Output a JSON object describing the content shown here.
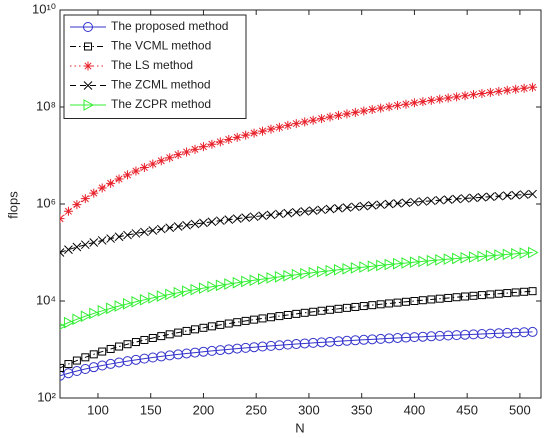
{
  "chart_data": {
    "type": "line",
    "xlabel": "N",
    "ylabel": "flops",
    "log_y": true,
    "legend": "upper left",
    "xlim": [
      64,
      520
    ],
    "xticks": [
      100,
      150,
      200,
      250,
      300,
      350,
      400,
      450,
      500
    ],
    "ylim": [
      100,
      10000000000
    ],
    "yticks": [
      {
        "value": 100,
        "label": "10²"
      },
      {
        "value": 10000,
        "label": "10⁴"
      },
      {
        "value": 1000000,
        "label": "10⁶"
      },
      {
        "value": 100000000,
        "label": "10⁸"
      },
      {
        "value": 10000000000,
        "label": "10¹⁰"
      }
    ],
    "x": [
      64,
      72,
      80,
      88,
      96,
      104,
      112,
      120,
      128,
      136,
      144,
      152,
      160,
      168,
      176,
      184,
      192,
      200,
      208,
      216,
      224,
      232,
      240,
      248,
      256,
      264,
      272,
      280,
      288,
      296,
      304,
      312,
      320,
      328,
      336,
      344,
      352,
      360,
      368,
      376,
      384,
      392,
      400,
      408,
      416,
      424,
      432,
      440,
      448,
      456,
      464,
      472,
      480,
      488,
      496,
      504,
      512
    ],
    "series": [
      {
        "name": "The proposed method",
        "color": "#3333cc",
        "marker": "circle",
        "dash": "solid",
        "values": [
          288,
          324,
          360,
          396,
          432,
          468,
          504,
          540,
          576,
          612,
          648,
          684,
          720,
          756,
          792,
          828,
          864,
          900,
          936,
          972,
          1008,
          1044,
          1080,
          1116,
          1152,
          1188,
          1224,
          1260,
          1296,
          1332,
          1368,
          1404,
          1440,
          1476,
          1512,
          1548,
          1584,
          1620,
          1656,
          1692,
          1728,
          1764,
          1800,
          1836,
          1872,
          1908,
          1944,
          1980,
          2016,
          2052,
          2088,
          2124,
          2160,
          2196,
          2232,
          2268,
          2304
        ]
      },
      {
        "name": "The VCML method",
        "color": "#000000",
        "marker": "square",
        "dash": "dashdot",
        "values": [
          417,
          501,
          592,
          690,
          795,
          907,
          1026,
          1152,
          1285,
          1425,
          1572,
          1727,
          1888,
          2056,
          2232,
          2414,
          2604,
          2800,
          3004,
          3214,
          3432,
          3656,
          3888,
          4127,
          4372,
          4625,
          4885,
          5152,
          5426,
          5707,
          5995,
          6290,
          6592,
          6901,
          7217,
          7540,
          7871,
          8208,
          8552,
          8904,
          9262,
          9628,
          10000,
          10380,
          10766,
          11160,
          11560,
          11968,
          12383,
          12804,
          13233,
          13669,
          14112,
          14562,
          15019,
          15483,
          15954
        ]
      },
      {
        "name": "The LS method",
        "color": "#e8202a",
        "marker": "star",
        "dash": "dotted",
        "values": [
          498000,
          709000,
          973000,
          1290000,
          1680000,
          2140000,
          2670000,
          3280000,
          3980000,
          4780000,
          5670000,
          6670000,
          7780000,
          9010000,
          10400000,
          11800000,
          13400000,
          15200000,
          17100000,
          19100000,
          21400000,
          23700000,
          26300000,
          29000000,
          31900000,
          35000000,
          38200000,
          41700000,
          45400000,
          49300000,
          53400000,
          57700000,
          62300000,
          67000000,
          72100000,
          77300000,
          82900000,
          88600000,
          94700000,
          101000000,
          108000000,
          114000000,
          122000000,
          129000000,
          137000000,
          145000000,
          153000000,
          162000000,
          171000000,
          180000000,
          190000000,
          200000000,
          210000000,
          221000000,
          232000000,
          243000000,
          255000000
        ]
      },
      {
        "name": "The ZCML method",
        "color": "#000000",
        "marker": "x",
        "dash": "dashed",
        "values": [
          100096,
          114624,
          129600,
          145024,
          160896,
          177216,
          193984,
          211200,
          228864,
          246976,
          265536,
          284544,
          304000,
          323904,
          344256,
          365056,
          386304,
          408000,
          430144,
          452736,
          475776,
          499264,
          523200,
          547584,
          572416,
          597696,
          623424,
          649600,
          676224,
          703296,
          730816,
          758784,
          787200,
          816064,
          845376,
          875136,
          905344,
          936000,
          967104,
          998656,
          1030656,
          1063104,
          1096000,
          1129344,
          1163136,
          1197376,
          1232064,
          1267200,
          1302784,
          1338816,
          1375296,
          1412224,
          1449600,
          1487424,
          1525696,
          1564416,
          1603584
        ]
      },
      {
        "name": "The ZCPR method",
        "color": "#33ee33",
        "marker": "triangle-right",
        "dash": "solid",
        "values": [
          3016,
          3583,
          4192,
          4844,
          5537,
          6273,
          7052,
          7872,
          8735,
          9640,
          10587,
          11576,
          12608,
          13682,
          14798,
          15956,
          17157,
          18400,
          19685,
          21012,
          22382,
          23794,
          25248,
          26744,
          28283,
          29864,
          31487,
          33152,
          34860,
          36609,
          38401,
          40236,
          42112,
          44031,
          45992,
          47995,
          50040,
          52128,
          54258,
          56430,
          58645,
          60901,
          63200,
          65541,
          67925,
          70350,
          72818,
          75328,
          77880,
          80475,
          83112,
          85791,
          88512,
          91276,
          94081,
          96929,
          99820
        ]
      }
    ]
  }
}
